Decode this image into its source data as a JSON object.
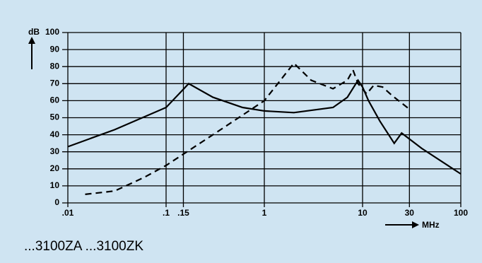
{
  "chart_data": {
    "type": "line",
    "y_label": "dB",
    "x_label": "MHz",
    "xscale": "log",
    "xlim": [
      0.01,
      100
    ],
    "xticks": [
      {
        "value": 0.01,
        "label": ".01"
      },
      {
        "value": 0.1,
        "label": ".1"
      },
      {
        "value": 0.15,
        "label": ".15"
      },
      1,
      10,
      30,
      100
    ],
    "ylim": [
      0,
      100
    ],
    "yticks": [
      0,
      10,
      20,
      30,
      40,
      50,
      60,
      70,
      80,
      90,
      100
    ],
    "grid": true,
    "series": [
      {
        "color": "#000000",
        "style": "solid",
        "x": [
          0.01,
          0.03,
          0.1,
          0.17,
          0.3,
          0.6,
          1,
          2,
          5,
          7,
          9,
          10,
          11.5,
          15,
          21,
          25,
          40,
          100
        ],
        "values": [
          33,
          43,
          56,
          70,
          62,
          56,
          54,
          53,
          56,
          62,
          72,
          68,
          60,
          48,
          35,
          41,
          32,
          17
        ]
      },
      {
        "color": "#000000",
        "style": "dashed",
        "x": [
          0.015,
          0.03,
          0.06,
          0.1,
          0.3,
          1,
          2,
          3,
          5,
          7,
          8,
          9,
          11,
          13,
          16,
          20,
          30
        ],
        "values": [
          5,
          7,
          15,
          22,
          40,
          60,
          82,
          72,
          67,
          72,
          78,
          70,
          64,
          69,
          68,
          63,
          55
        ]
      }
    ]
  },
  "caption": "...3100ZA ...3100ZK"
}
